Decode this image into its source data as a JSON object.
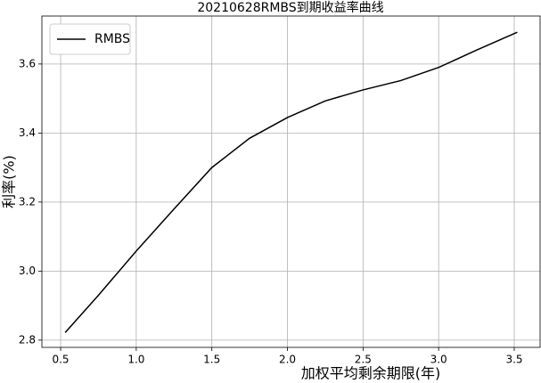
{
  "chart_data": {
    "type": "line",
    "title": "20210628RMBS到期收益率曲线",
    "x_label": "加权平均剩余期限(年)",
    "y_label": "利率(%)",
    "x": [
      0.53,
      0.75,
      1.0,
      1.25,
      1.5,
      1.75,
      2.0,
      2.25,
      2.5,
      2.75,
      3.0,
      3.25,
      3.52
    ],
    "series": [
      {
        "name": "RMBS",
        "color": "#000000",
        "values": [
          2.822,
          2.93,
          3.058,
          3.18,
          3.3,
          3.385,
          3.445,
          3.493,
          3.525,
          3.552,
          3.59,
          3.64,
          3.692
        ]
      }
    ],
    "xlim": [
      0.376,
      3.671
    ],
    "ylim": [
      2.779,
      3.739
    ],
    "xticks": [
      0.5,
      {
        "value": 1,
        "label": "1.0"
      },
      1.5,
      {
        "value": 2,
        "label": "2.0"
      },
      2.5,
      {
        "value": 3,
        "label": "3.0"
      },
      3.5
    ],
    "yticks": [
      2.8,
      {
        "value": 3,
        "label": "3.0"
      },
      3.2,
      3.4,
      3.6
    ],
    "grid": true,
    "legend": "upper left"
  }
}
